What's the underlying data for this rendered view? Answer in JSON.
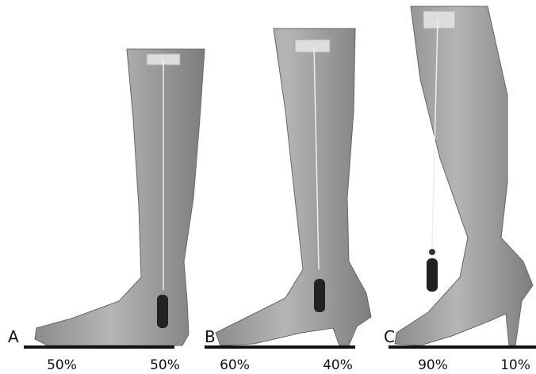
{
  "panels": [
    {
      "label": "A",
      "left": "50%",
      "right": "50%"
    },
    {
      "label": "B",
      "left": "60%",
      "right": "40%"
    },
    {
      "label": "C",
      "left": "90%",
      "right": "10%"
    }
  ]
}
